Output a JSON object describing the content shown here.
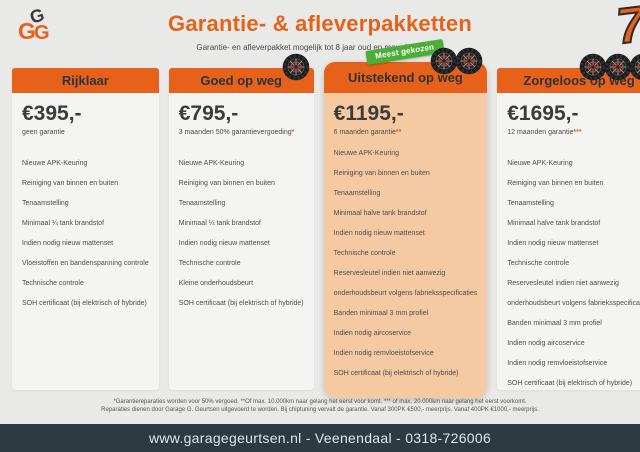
{
  "header": {
    "title": "Garantie- & afleverpakketten",
    "subtitle": "Garantie- en afleverpakket mogelijk tot 8 jaar oud en max. 150.000km",
    "logo": {
      "g_top": "G",
      "g_left": "G",
      "g_right": "G"
    },
    "corner_mark": "7"
  },
  "packages": [
    {
      "title": "Rijklaar",
      "price": "€395,-",
      "subtitle": "geen garantie",
      "stars": "",
      "tires": 0,
      "highlighted": false,
      "badge": "",
      "features": [
        "Nieuwe APK-Keuring",
        "Reiniging van binnen en buiten",
        "Tenaamstelling",
        "Minimaal ¼ tank brandstof",
        "Indien nodig nieuw mattenset",
        "Vloeistoffen en bandenspanning controle",
        "Technische controle",
        "SOH certificaat (bij elektrisch of hybride)"
      ]
    },
    {
      "title": "Goed op weg",
      "price": "€795,-",
      "subtitle": "3 maanden 50% garantievergoeding",
      "stars": "*",
      "tires": 1,
      "highlighted": false,
      "badge": "",
      "features": [
        "Nieuwe APK-Keuring",
        "Reiniging van binnen en buiten",
        "Tenaamstelling",
        "Minimaal ¼ tank brandstof",
        "Indien nodig nieuw mattenset",
        "Technische controle",
        "Kleine onderhoudsbeurt",
        "SOH certificaat (bij elektrisch of hybride)"
      ]
    },
    {
      "title": "Uitstekend op weg",
      "price": "€1195,-",
      "subtitle": "6 maanden garantie",
      "stars": "**",
      "tires": 2,
      "highlighted": true,
      "badge": "Meest gekozen",
      "features": [
        "Nieuwe APK-Keuring",
        "Reiniging van binnen en buiten",
        "Tenaamstelling",
        "Minimaal halve tank brandstof",
        "Indien nodig nieuw mattenset",
        "Technische controle",
        "Reservesleutel indien niet aanwezig",
        "onderhoudsbeurt volgens fabrieksspecificaties",
        "Banden minimaal 3 mm profiel",
        "Indien nodig aircoservice",
        "Indien nodig remvloeistofservice",
        "SOH certificaat (bij elektrisch of hybride)"
      ]
    },
    {
      "title": "Zorgeloos op weg",
      "price": "€1695,-",
      "subtitle": "12 maanden garantie",
      "stars": "***",
      "tires": 3,
      "highlighted": false,
      "badge": "",
      "features": [
        "Nieuwe APK-Keuring",
        "Reiniging van binnen en buiten",
        "Tenaamstelling",
        "Minimaal halve tank brandstof",
        "Indien nodig nieuw mattenset",
        "Technische controle",
        "Reservesleutel indien niet aanwezig",
        "onderhoudsbeurt volgens fabrieksspecificaties",
        "Banden minimaal 3 mm profiel",
        "Indien nodig aircoservice",
        "Indien nodig remvloeistofservice",
        "SOH certificaat (bij elektrisch of hybride)"
      ]
    }
  ],
  "footnotes": [
    "*Garantiereparaties worden voor 50% vergoed. **Of max. 10.000km naar gelang het eerst voor komt. *** of max. 20.000km naar gelang het eerst voorkomt.",
    "Reparaties dienen door Garage G. Geurtsen uitgevoerd te worden. Bij chiptuning vervalt de garantie. Vanaf 300PK €500,- meerprijs. Vanaf 400PK €1000,- meerprijs."
  ],
  "footer": {
    "contact": "www.garagegeurtsen.nl - Veenendaal - 0318-726006"
  },
  "colors": {
    "accent_orange": "#e6611a",
    "highlight_peach": "#f5c9a2",
    "badge_green": "#4bae37",
    "footer_bar": "#2b3b41",
    "page_background": "#e9e9e7",
    "card_background": "#f4f4f2"
  }
}
